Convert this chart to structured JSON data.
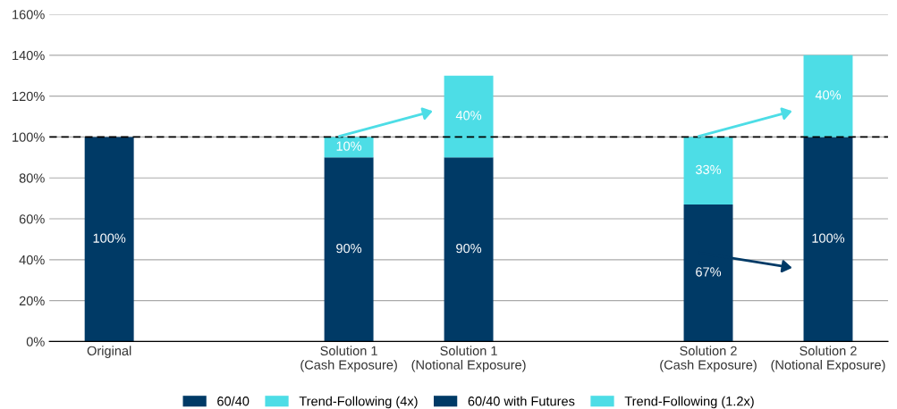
{
  "chart_data": {
    "type": "bar",
    "stacked": true,
    "categories": [
      "Original",
      null,
      "Solution 1\n(Cash Exposure)",
      "Solution 1\n(Notional Exposure)",
      null,
      "Solution 2\n(Cash Exposure)",
      "Solution 2\n(Notional Exposure)"
    ],
    "series": [
      {
        "name": "60/40",
        "color": "#003a66",
        "values": [
          100,
          null,
          90,
          90,
          null,
          null,
          null
        ],
        "value_labels": [
          "100%",
          null,
          "90%",
          "90%",
          null,
          null,
          null
        ]
      },
      {
        "name": "Trend-Following (4x)",
        "color": "#4ddde6",
        "values": [
          null,
          null,
          10,
          40,
          null,
          null,
          null
        ],
        "value_labels": [
          null,
          null,
          "10%",
          "40%",
          null,
          null,
          null
        ]
      },
      {
        "name": "60/40 with Futures",
        "color": "#003a66",
        "values": [
          null,
          null,
          null,
          null,
          null,
          67,
          100
        ],
        "value_labels": [
          null,
          null,
          null,
          null,
          null,
          "67%",
          "100%"
        ]
      },
      {
        "name": "Trend-Following (1.2x)",
        "color": "#4ddde6",
        "values": [
          null,
          null,
          null,
          null,
          null,
          33,
          40
        ],
        "value_labels": [
          null,
          null,
          null,
          null,
          null,
          "33%",
          "40%"
        ]
      }
    ],
    "ylim": [
      0,
      160
    ],
    "yticks": [
      {
        "value": 0,
        "label": "0%"
      },
      {
        "value": 20,
        "label": "20%"
      },
      {
        "value": 40,
        "label": "40%"
      },
      {
        "value": 60,
        "label": "60%"
      },
      {
        "value": 80,
        "label": "80%"
      },
      {
        "value": 100,
        "label": "100%"
      },
      {
        "value": 120,
        "label": "120%"
      },
      {
        "value": 140,
        "label": "140%"
      },
      {
        "value": 160,
        "label": "160%"
      }
    ],
    "ref_lines": [
      {
        "axis": "y",
        "value": 100,
        "color": "#000000",
        "line_style": "dashed"
      }
    ],
    "grid": "y",
    "legend": "bottom"
  }
}
